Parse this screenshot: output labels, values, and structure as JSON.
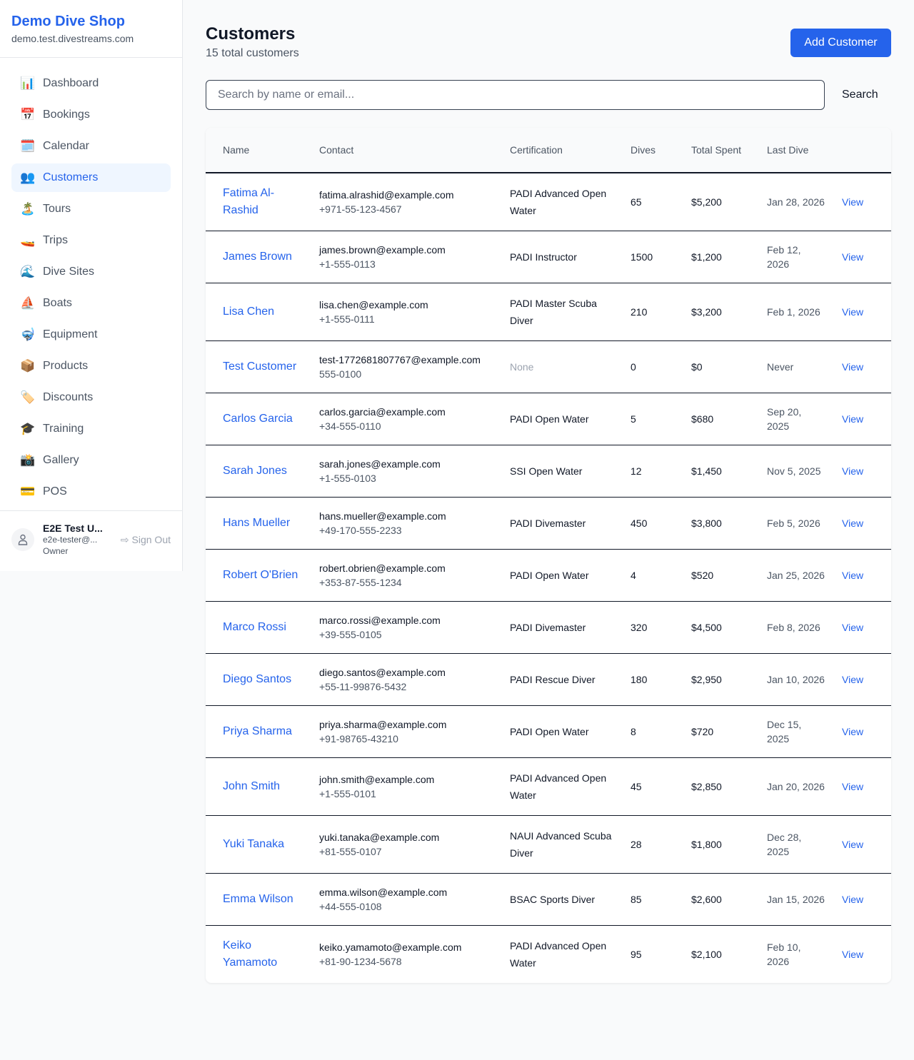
{
  "sidebar": {
    "shop_name": "Demo Dive Shop",
    "domain": "demo.test.divestreams.com",
    "items": [
      {
        "label": "Dashboard",
        "icon": "📊",
        "name": "bar-chart-icon"
      },
      {
        "label": "Bookings",
        "icon": "📅",
        "name": "calendar-date-icon"
      },
      {
        "label": "Calendar",
        "icon": "🗓️",
        "name": "calendar-icon"
      },
      {
        "label": "Customers",
        "icon": "👥",
        "name": "users-icon",
        "active": true
      },
      {
        "label": "Tours",
        "icon": "🏝️",
        "name": "island-icon"
      },
      {
        "label": "Trips",
        "icon": "🚤",
        "name": "speedboat-icon"
      },
      {
        "label": "Dive Sites",
        "icon": "🌊",
        "name": "wave-icon"
      },
      {
        "label": "Boats",
        "icon": "⛵",
        "name": "sailboat-icon"
      },
      {
        "label": "Equipment",
        "icon": "🤿",
        "name": "diving-mask-icon"
      },
      {
        "label": "Products",
        "icon": "📦",
        "name": "package-icon"
      },
      {
        "label": "Discounts",
        "icon": "🏷️",
        "name": "tag-icon"
      },
      {
        "label": "Training",
        "icon": "🎓",
        "name": "graduation-cap-icon"
      },
      {
        "label": "Gallery",
        "icon": "📸",
        "name": "camera-icon"
      },
      {
        "label": "POS",
        "icon": "💳",
        "name": "credit-card-icon"
      }
    ],
    "user": {
      "name": "E2E Test U...",
      "email": "e2e-tester@...",
      "role": "Owner",
      "sign_out": "Sign Out"
    }
  },
  "header": {
    "title": "Customers",
    "subtitle": "15 total customers",
    "add_label": "Add Customer"
  },
  "search": {
    "placeholder": "Search by name or email...",
    "button": "Search"
  },
  "table": {
    "columns": [
      "Name",
      "Contact",
      "Certification",
      "Dives",
      "Total Spent",
      "Last Dive",
      ""
    ],
    "rows": [
      {
        "name": "Fatima Al-Rashid",
        "email": "fatima.alrashid@example.com",
        "phone": "+971-55-123-4567",
        "cert": "PADI Advanced Open Water",
        "dives": "65",
        "spent": "$5,200",
        "last": "Jan 28, 2026"
      },
      {
        "name": "James Brown",
        "email": "james.brown@example.com",
        "phone": "+1-555-0113",
        "cert": "PADI Instructor",
        "dives": "1500",
        "spent": "$1,200",
        "last": "Feb 12, 2026"
      },
      {
        "name": "Lisa Chen",
        "email": "lisa.chen@example.com",
        "phone": "+1-555-0111",
        "cert": "PADI Master Scuba Diver",
        "dives": "210",
        "spent": "$3,200",
        "last": "Feb 1, 2026"
      },
      {
        "name": "Test Customer",
        "email": "test-1772681807767@example.com",
        "phone": "555-0100",
        "cert": "None",
        "dives": "0",
        "spent": "$0",
        "last": "Never"
      },
      {
        "name": "Carlos Garcia",
        "email": "carlos.garcia@example.com",
        "phone": "+34-555-0110",
        "cert": "PADI Open Water",
        "dives": "5",
        "spent": "$680",
        "last": "Sep 20, 2025"
      },
      {
        "name": "Sarah Jones",
        "email": "sarah.jones@example.com",
        "phone": "+1-555-0103",
        "cert": "SSI Open Water",
        "dives": "12",
        "spent": "$1,450",
        "last": "Nov 5, 2025"
      },
      {
        "name": "Hans Mueller",
        "email": "hans.mueller@example.com",
        "phone": "+49-170-555-2233",
        "cert": "PADI Divemaster",
        "dives": "450",
        "spent": "$3,800",
        "last": "Feb 5, 2026"
      },
      {
        "name": "Robert O'Brien",
        "email": "robert.obrien@example.com",
        "phone": "+353-87-555-1234",
        "cert": "PADI Open Water",
        "dives": "4",
        "spent": "$520",
        "last": "Jan 25, 2026"
      },
      {
        "name": "Marco Rossi",
        "email": "marco.rossi@example.com",
        "phone": "+39-555-0105",
        "cert": "PADI Divemaster",
        "dives": "320",
        "spent": "$4,500",
        "last": "Feb 8, 2026"
      },
      {
        "name": "Diego Santos",
        "email": "diego.santos@example.com",
        "phone": "+55-11-99876-5432",
        "cert": "PADI Rescue Diver",
        "dives": "180",
        "spent": "$2,950",
        "last": "Jan 10, 2026"
      },
      {
        "name": "Priya Sharma",
        "email": "priya.sharma@example.com",
        "phone": "+91-98765-43210",
        "cert": "PADI Open Water",
        "dives": "8",
        "spent": "$720",
        "last": "Dec 15, 2025"
      },
      {
        "name": "John Smith",
        "email": "john.smith@example.com",
        "phone": "+1-555-0101",
        "cert": "PADI Advanced Open Water",
        "dives": "45",
        "spent": "$2,850",
        "last": "Jan 20, 2026"
      },
      {
        "name": "Yuki Tanaka",
        "email": "yuki.tanaka@example.com",
        "phone": "+81-555-0107",
        "cert": "NAUI Advanced Scuba Diver",
        "dives": "28",
        "spent": "$1,800",
        "last": "Dec 28, 2025"
      },
      {
        "name": "Emma Wilson",
        "email": "emma.wilson@example.com",
        "phone": "+44-555-0108",
        "cert": "BSAC Sports Diver",
        "dives": "85",
        "spent": "$2,600",
        "last": "Jan 15, 2026"
      },
      {
        "name": "Keiko Yamamoto",
        "email": "keiko.yamamoto@example.com",
        "phone": "+81-90-1234-5678",
        "cert": "PADI Advanced Open Water",
        "dives": "95",
        "spent": "$2,100",
        "last": "Feb 10, 2026"
      }
    ],
    "view_label": "View"
  }
}
